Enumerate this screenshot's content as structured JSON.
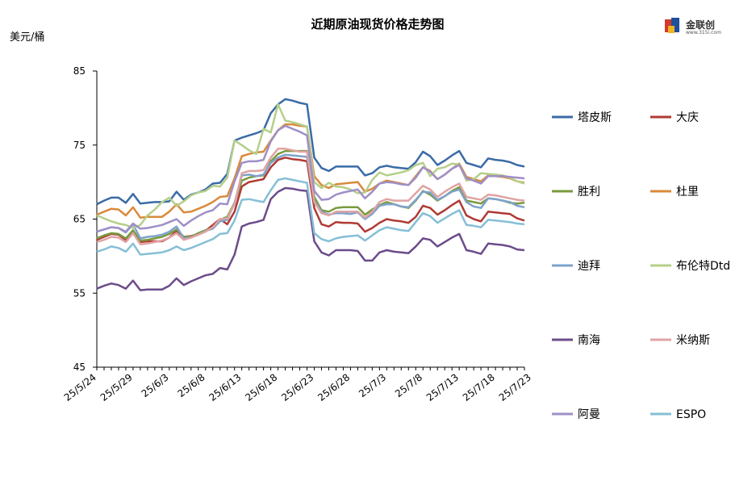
{
  "header": {
    "title": "近期原油现货价格走势图",
    "unit": "美元/桶",
    "logo_text": "金联创",
    "logo_sub": "www.315i.com"
  },
  "chart_data": {
    "type": "line",
    "title": "近期原油现货价格走势图",
    "ylabel": "美元/桶",
    "ylim": [
      45,
      85
    ],
    "yticks": [
      45,
      55,
      65,
      75,
      85
    ],
    "grid": false,
    "legend_position": "right",
    "x_start": "25/5/24",
    "x_end": "25/7/24",
    "xtick_labels": [
      "25/5/24",
      "25/5/29",
      "25/6/3",
      "25/6/8",
      "25/6/13",
      "25/6/18",
      "25/6/23",
      "25/6/28",
      "25/7/3",
      "25/7/8",
      "25/7/13",
      "25/7/18",
      "25/7/23"
    ],
    "series": [
      {
        "name": "塔皮斯",
        "color": "#3a6ba6",
        "values": [
          67.0,
          67.5,
          67.9,
          67.9,
          67.2,
          68.4,
          67.1,
          67.2,
          67.3,
          67.3,
          67.4,
          68.7,
          67.6,
          68.3,
          68.6,
          69.0,
          69.8,
          69.9,
          71.1,
          75.6,
          76.0,
          76.3,
          76.6,
          77.0,
          79.3,
          80.5,
          81.2,
          81.0,
          80.7,
          80.5,
          73.3,
          71.9,
          71.5,
          72.1,
          72.1,
          72.1,
          72.1,
          70.9,
          71.2,
          72.0,
          72.2,
          72.0,
          71.9,
          71.8,
          72.7,
          74.1,
          73.5,
          72.3,
          72.9,
          73.6,
          74.2,
          72.6,
          72.3,
          72.0,
          73.2,
          73.0,
          72.9,
          72.7,
          72.3,
          72.1
        ]
      },
      {
        "name": "大庆",
        "color": "#b03a35",
        "values": [
          62.2,
          62.6,
          63.0,
          62.9,
          62.2,
          63.4,
          61.9,
          62.0,
          62.0,
          62.0,
          62.5,
          63.4,
          62.6,
          62.7,
          63.0,
          63.4,
          64.2,
          65.0,
          64.3,
          66.0,
          69.4,
          70.0,
          70.2,
          70.4,
          72.0,
          73.0,
          73.3,
          73.1,
          73.0,
          72.8,
          66.5,
          64.3,
          64.0,
          64.6,
          64.5,
          64.5,
          64.4,
          63.3,
          63.8,
          64.5,
          65.0,
          64.8,
          64.7,
          64.5,
          65.3,
          66.8,
          66.5,
          65.6,
          66.2,
          66.9,
          67.5,
          65.5,
          65.0,
          64.7,
          66.0,
          65.9,
          65.8,
          65.7,
          65.1,
          64.8
        ]
      },
      {
        "name": "胜利",
        "color": "#7a9a3e",
        "values": [
          62.4,
          62.8,
          63.1,
          63.0,
          62.4,
          63.5,
          62.1,
          62.2,
          62.4,
          62.6,
          63.0,
          63.6,
          62.6,
          62.6,
          63.1,
          63.5,
          63.8,
          64.9,
          65.3,
          67.2,
          70.2,
          70.6,
          70.8,
          70.9,
          72.8,
          73.8,
          74.2,
          74.2,
          74.2,
          74.2,
          68.0,
          66.2,
          66.0,
          66.5,
          66.6,
          66.6,
          66.6,
          65.6,
          66.3,
          66.9,
          67.3,
          67.0,
          66.7,
          66.5,
          67.5,
          68.8,
          68.3,
          67.5,
          68.1,
          68.8,
          69.3,
          67.5,
          67.3,
          67.1,
          67.8,
          67.7,
          67.5,
          67.2,
          67.1,
          67.2
        ]
      },
      {
        "name": "杜里",
        "color": "#d98a3b",
        "values": [
          65.6,
          66.0,
          66.4,
          66.3,
          65.5,
          66.6,
          65.2,
          65.3,
          65.3,
          65.3,
          66.0,
          67.0,
          65.9,
          66.0,
          66.4,
          66.8,
          67.3,
          68.0,
          68.1,
          70.5,
          73.5,
          73.8,
          74.0,
          74.1,
          75.6,
          77.0,
          77.8,
          77.8,
          77.6,
          77.5,
          70.8,
          69.6,
          69.2,
          69.7,
          69.8,
          69.9,
          70.0,
          68.7,
          69.1,
          69.8,
          70.2,
          70.0,
          69.8,
          69.6,
          70.8,
          72.0,
          71.5,
          70.4,
          71.0,
          71.8,
          72.5,
          70.7,
          70.4,
          70.1,
          70.9,
          70.8,
          70.7,
          70.5,
          70.1,
          69.9
        ]
      },
      {
        "name": "迪拜",
        "color": "#7ea3cc",
        "values": [
          63.3,
          63.6,
          63.9,
          63.8,
          63.2,
          64.3,
          62.4,
          62.6,
          62.7,
          62.9,
          63.3,
          64.0,
          62.4,
          62.5,
          62.9,
          63.4,
          63.7,
          64.7,
          64.9,
          67.2,
          70.9,
          71.0,
          70.8,
          71.0,
          72.6,
          73.3,
          73.7,
          73.6,
          73.5,
          73.4,
          67.5,
          66.0,
          65.6,
          65.8,
          65.8,
          65.7,
          65.9,
          65.0,
          65.7,
          66.8,
          67.0,
          67.0,
          66.7,
          66.6,
          67.6,
          68.7,
          68.6,
          67.6,
          68.1,
          68.7,
          69.0,
          67.3,
          66.7,
          66.5,
          67.8,
          67.7,
          67.5,
          67.3,
          66.8,
          66.6
        ]
      },
      {
        "name": "布伦特Dtd",
        "color": "#b5cf8a",
        "values": [
          65.5,
          65.1,
          64.7,
          64.4,
          64.2,
          63.8,
          64.2,
          65.5,
          66.3,
          67.3,
          67.9,
          66.8,
          67.4,
          68.2,
          68.6,
          68.8,
          69.5,
          69.4,
          70.6,
          75.6,
          75.0,
          74.3,
          73.8,
          77.2,
          76.7,
          80.5,
          78.3,
          78.1,
          77.8,
          77.5,
          70.0,
          69.2,
          69.9,
          69.4,
          69.3,
          69.0,
          68.5,
          68.6,
          70.3,
          71.3,
          70.9,
          71.1,
          71.3,
          71.6,
          72.3,
          72.6,
          70.8,
          71.8,
          72.0,
          72.5,
          72.4,
          70.2,
          70.4,
          71.2,
          71.1,
          71.0,
          70.9,
          70.6,
          70.1,
          69.8
        ]
      },
      {
        "name": "南海",
        "color": "#6b4c8a",
        "values": [
          55.6,
          56.0,
          56.3,
          56.1,
          55.6,
          56.7,
          55.4,
          55.5,
          55.5,
          55.5,
          56.0,
          57.0,
          56.1,
          56.6,
          57.0,
          57.4,
          57.6,
          58.4,
          58.2,
          60.2,
          64.0,
          64.4,
          64.6,
          64.9,
          67.7,
          68.7,
          69.2,
          69.1,
          68.9,
          68.8,
          62.0,
          60.5,
          60.1,
          60.8,
          60.8,
          60.8,
          60.7,
          59.4,
          59.4,
          60.5,
          60.8,
          60.6,
          60.5,
          60.4,
          61.3,
          62.4,
          62.2,
          61.3,
          61.9,
          62.5,
          63.0,
          60.8,
          60.6,
          60.3,
          61.7,
          61.6,
          61.5,
          61.3,
          60.9,
          60.8
        ]
      },
      {
        "name": "米纳斯",
        "color": "#e0a3a3",
        "values": [
          61.9,
          62.2,
          62.6,
          62.5,
          61.9,
          63.1,
          61.6,
          61.7,
          61.9,
          62.1,
          62.5,
          63.1,
          62.2,
          62.5,
          62.9,
          63.3,
          63.9,
          65.0,
          65.1,
          67.0,
          71.2,
          71.5,
          71.5,
          71.6,
          73.3,
          74.5,
          74.5,
          74.3,
          74.1,
          74.1,
          67.3,
          65.8,
          65.5,
          66.0,
          66.0,
          66.0,
          66.0,
          65.2,
          66.0,
          67.3,
          67.7,
          67.5,
          67.5,
          67.5,
          68.5,
          69.5,
          69.0,
          68.0,
          68.7,
          69.3,
          69.8,
          68.0,
          67.8,
          67.6,
          68.3,
          68.2,
          68.0,
          67.8,
          67.6,
          67.5
        ]
      },
      {
        "name": "阿曼",
        "color": "#9f8fc7",
        "values": [
          63.3,
          63.6,
          63.9,
          63.8,
          63.3,
          64.4,
          63.7,
          63.8,
          64.0,
          64.2,
          64.6,
          65.0,
          64.1,
          64.8,
          65.4,
          65.9,
          66.2,
          67.1,
          67.0,
          70.1,
          72.6,
          72.8,
          72.8,
          73.0,
          75.5,
          77.0,
          77.6,
          77.2,
          76.8,
          76.3,
          68.8,
          67.6,
          67.7,
          68.3,
          68.6,
          68.8,
          69.0,
          67.8,
          68.7,
          69.8,
          70.0,
          69.9,
          69.7,
          69.6,
          70.6,
          72.0,
          71.4,
          70.4,
          71.0,
          71.8,
          72.3,
          70.5,
          70.2,
          69.8,
          70.8,
          70.8,
          70.8,
          70.7,
          70.6,
          70.5
        ]
      },
      {
        "name": "ESPO",
        "color": "#86bfd6",
        "values": [
          60.6,
          60.9,
          61.3,
          61.1,
          60.6,
          61.7,
          60.2,
          60.3,
          60.4,
          60.5,
          60.8,
          61.3,
          60.8,
          61.1,
          61.5,
          61.9,
          62.3,
          63.0,
          63.1,
          64.8,
          67.6,
          67.7,
          67.5,
          67.3,
          68.9,
          70.3,
          70.5,
          70.3,
          70.1,
          69.9,
          63.1,
          62.3,
          62.0,
          62.4,
          62.6,
          62.7,
          62.8,
          62.1,
          62.8,
          63.5,
          63.9,
          63.7,
          63.5,
          63.4,
          64.6,
          65.8,
          65.4,
          64.5,
          65.1,
          65.7,
          66.2,
          64.2,
          64.1,
          63.9,
          64.9,
          64.8,
          64.7,
          64.6,
          64.4,
          64.3
        ]
      }
    ]
  }
}
